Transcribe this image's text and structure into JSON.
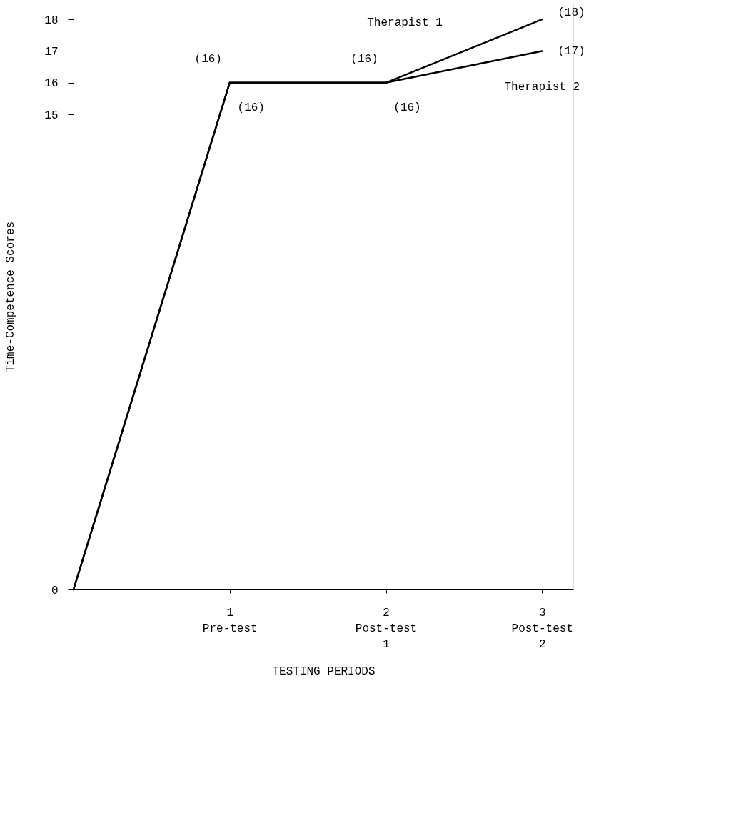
{
  "chart_data": {
    "type": "line",
    "xlabel": "TESTING PERIODS",
    "ylabel": "Time-Competence Scores",
    "categories": [
      null,
      "1\nPre-test",
      "2\nPost-test\n1",
      "3\nPost-test\n2"
    ],
    "series": [
      {
        "name": "Therapist 1",
        "color": "#000000",
        "values": [
          0,
          16,
          16,
          18
        ],
        "value_labels": [
          null,
          "(16)",
          "(16)",
          "(18)"
        ]
      },
      {
        "name": "Therapist 2",
        "color": "#000000",
        "values": [
          0,
          16,
          16,
          17
        ],
        "value_labels": [
          null,
          "(16)",
          "(16)",
          "(17)"
        ]
      }
    ],
    "ylim": [
      0,
      18.5
    ],
    "yticks": [
      0,
      15,
      16,
      17,
      18
    ],
    "grid": false,
    "legend": false,
    "marker": "none",
    "line_style": "solid"
  }
}
